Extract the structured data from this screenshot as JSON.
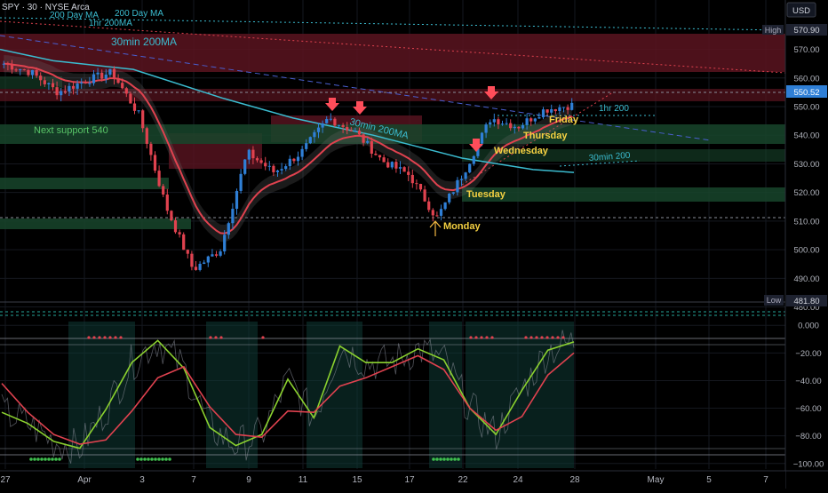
{
  "header": {
    "symbol_line": "SPY · 30 · NYSE Arca",
    "ma_label_1": "200 Day MA",
    "ma_label_2": "200 Day MA",
    "ma_label_3": "1hr 200MA",
    "currency": "USD"
  },
  "colors": {
    "background": "#000000",
    "bull": "#2f7fd6",
    "bear": "#e0424f",
    "ma30_200": "#3bbcd0",
    "ema_red": "#e0424f",
    "resistance_zone": "#5a1420",
    "support_zone": "#17452c",
    "annotation_yellow": "#f5d142",
    "annotation_green": "#58c467",
    "price_badge": "#2f7fd6"
  },
  "chart_data": [
    {
      "type": "candlestick",
      "title": "",
      "interval": "30",
      "x_tick_labels": [
        "27",
        "Apr",
        "3",
        "7",
        "9",
        "11",
        "15",
        "17",
        "22",
        "24",
        "28",
        "May",
        "5",
        "7"
      ],
      "y_tick_labels": [
        "480.00",
        "490.00",
        "500.00",
        "510.00",
        "520.00",
        "530.00",
        "540.00",
        "550.00",
        "560.00",
        "570.00"
      ],
      "ylim": [
        478,
        586
      ],
      "grid": true,
      "price_close_approx": [
        {
          "x": "Mar 27",
          "y": 565
        },
        {
          "x": "Mar 28",
          "y": 562
        },
        {
          "x": "Mar 31",
          "y": 555
        },
        {
          "x": "Apr 1",
          "y": 559
        },
        {
          "x": "Apr 2",
          "y": 562
        },
        {
          "x": "Apr 3",
          "y": 547
        },
        {
          "x": "Apr 4",
          "y": 515
        },
        {
          "x": "Apr 7",
          "y": 493
        },
        {
          "x": "Apr 8",
          "y": 500
        },
        {
          "x": "Apr 9",
          "y": 534
        },
        {
          "x": "Apr 10",
          "y": 527
        },
        {
          "x": "Apr 11",
          "y": 534
        },
        {
          "x": "Apr 14",
          "y": 546
        },
        {
          "x": "Apr 15",
          "y": 541
        },
        {
          "x": "Apr 16",
          "y": 531
        },
        {
          "x": "Apr 17",
          "y": 526
        },
        {
          "x": "Apr 21",
          "y": 511
        },
        {
          "x": "Apr 22",
          "y": 527
        },
        {
          "x": "Apr 23",
          "y": 546
        },
        {
          "x": "Apr 24",
          "y": 543
        },
        {
          "x": "Apr 25",
          "y": 549
        },
        {
          "x": "Apr 28",
          "y": 550.52
        }
      ],
      "lines": [
        {
          "name": "30min 200MA",
          "color": "#3bbcd0"
        },
        {
          "name": "200 Day MA",
          "value": 570.9,
          "style": "dotted",
          "color": "#3bbcd0"
        },
        {
          "name": "1hr 200",
          "style": "dotted",
          "color": "#3bbcd0"
        }
      ],
      "zones": [
        {
          "kind": "resistance",
          "from": 546,
          "to": 562
        },
        {
          "kind": "support",
          "from": 535,
          "to": 541
        },
        {
          "kind": "support",
          "from": 516,
          "to": 521
        },
        {
          "kind": "support",
          "from": 505,
          "to": 508
        }
      ],
      "annotations": [
        {
          "text": "30min 200MA",
          "kind": "ma-label"
        },
        {
          "text": "30min 200MA",
          "kind": "ma-label"
        },
        {
          "text": "Next support 540",
          "kind": "green"
        },
        {
          "text": "Monday",
          "kind": "yellow",
          "marker": "up-arrow"
        },
        {
          "text": "Tuesday",
          "kind": "yellow"
        },
        {
          "text": "Wednesday",
          "kind": "yellow"
        },
        {
          "text": "Thursday",
          "kind": "yellow"
        },
        {
          "text": "Friday",
          "kind": "yellow"
        },
        {
          "text": "1hr 200",
          "kind": "ma-label"
        },
        {
          "text": "30min 200",
          "kind": "ma-label"
        }
      ],
      "price_labels": [
        {
          "label": "High",
          "value": "570.90"
        },
        {
          "label": "",
          "value": "550.52",
          "current": true
        },
        {
          "label": "Low",
          "value": "481.80"
        }
      ]
    },
    {
      "type": "line",
      "title": "",
      "y_tick_labels": [
        "0.000",
        "−20.00",
        "−40.00",
        "−60.00",
        "−80.00",
        "−100.00"
      ],
      "ylim": [
        -104,
        4
      ],
      "series": [
        {
          "color": "#8bd12f",
          "values": [
            -63,
            -71,
            -84,
            -89,
            -61,
            -27,
            -11,
            -31,
            -74,
            -87,
            -79,
            -39,
            -67,
            -15,
            -27,
            -27,
            -17,
            -25,
            -60,
            -79,
            -47,
            -18,
            -12
          ]
        },
        {
          "color": "#e0424f",
          "values": [
            -42,
            -63,
            -79,
            -86,
            -83,
            -62,
            -38,
            -30,
            -59,
            -79,
            -81,
            -62,
            -63,
            -44,
            -38,
            -30,
            -22,
            -32,
            -60,
            -76,
            -66,
            -36,
            -20
          ]
        }
      ]
    }
  ]
}
